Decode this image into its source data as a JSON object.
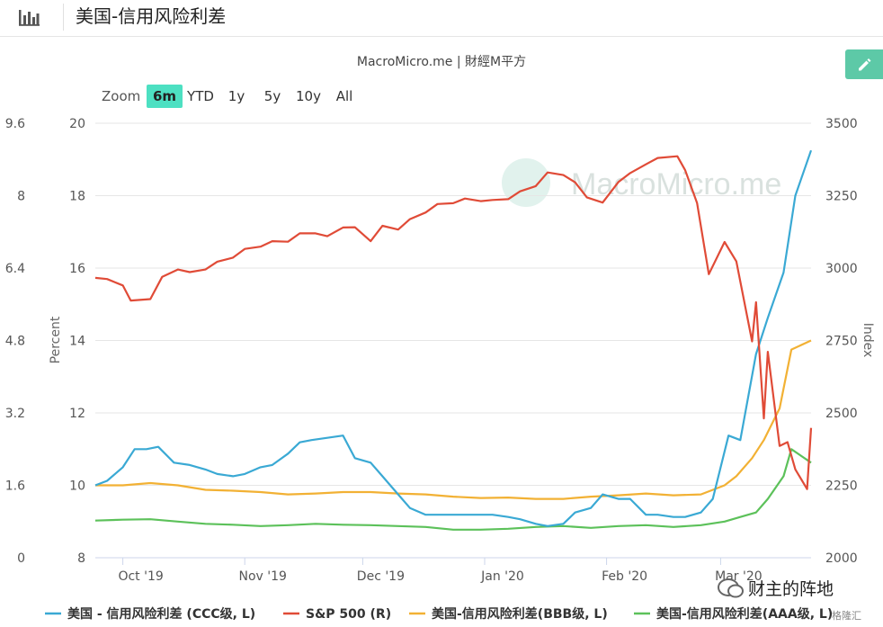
{
  "header": {
    "title": "美国-信用风险利差",
    "icon": "bar-chart-icon"
  },
  "source": "MacroMicro.me | 財經M平方",
  "watermark": "MacroMicro.me",
  "range_selector": {
    "zoom_label": "Zoom",
    "buttons": [
      "6m",
      "YTD",
      "1y",
      "5y",
      "10y",
      "All"
    ],
    "selected": "6m"
  },
  "edit_button": {
    "icon": "pencil-icon"
  },
  "footer_text": {
    "wechat": "财主的阵地",
    "small": "格隆汇"
  },
  "colors": {
    "ccc": "#3aa9d4",
    "sp500": "#e04b37",
    "bbb": "#f2b134",
    "aaa": "#5cc15a",
    "accent": "#4de0c2"
  },
  "chart_data": {
    "type": "line",
    "x_ticks": [
      "Oct '19",
      "Nov '19",
      "Dec '19",
      "Jan '20",
      "Feb '20",
      "Mar '20"
    ],
    "x_range": [
      "2019-09-24",
      "2020-03-24"
    ],
    "left_axis_1": {
      "ticks": [
        "9.6",
        "8",
        "6.4",
        "4.8",
        "3.2",
        "1.6",
        "0"
      ],
      "range": [
        0,
        9.6
      ]
    },
    "left_axis_2": {
      "label": "Percent",
      "ticks": [
        "20",
        "18",
        "16",
        "14",
        "12",
        "10",
        "8"
      ],
      "range": [
        8,
        20
      ]
    },
    "right_axis": {
      "label": "Index",
      "ticks": [
        "3500",
        "3250",
        "3000",
        "2750",
        "2500",
        "2250",
        "2000"
      ],
      "range": [
        2000,
        3500
      ]
    },
    "series": [
      {
        "name": "美国 - 信用风险利差 (CCC级, L)",
        "axis": "left_axis_1",
        "x": [
          "2019-09-24",
          "2019-09-27",
          "2019-10-01",
          "2019-10-04",
          "2019-10-07",
          "2019-10-10",
          "2019-10-14",
          "2019-10-18",
          "2019-10-22",
          "2019-10-25",
          "2019-10-29",
          "2019-11-01",
          "2019-11-05",
          "2019-11-08",
          "2019-11-12",
          "2019-11-15",
          "2019-11-18",
          "2019-11-22",
          "2019-11-26",
          "2019-11-29",
          "2019-12-03",
          "2019-12-06",
          "2019-12-10",
          "2019-12-13",
          "2019-12-17",
          "2019-12-20",
          "2019-12-24",
          "2019-12-27",
          "2019-12-31",
          "2020-01-03",
          "2020-01-07",
          "2020-01-10",
          "2020-01-14",
          "2020-01-17",
          "2020-01-21",
          "2020-01-24",
          "2020-01-28",
          "2020-01-31",
          "2020-02-04",
          "2020-02-07",
          "2020-02-11",
          "2020-02-14",
          "2020-02-18",
          "2020-02-21",
          "2020-02-25",
          "2020-02-28",
          "2020-03-03",
          "2020-03-06",
          "2020-03-10",
          "2020-03-13",
          "2020-03-17",
          "2020-03-20",
          "2020-03-24"
        ],
        "values": [
          1.6,
          1.7,
          2.0,
          2.4,
          2.4,
          2.45,
          2.1,
          2.05,
          1.95,
          1.85,
          1.8,
          1.85,
          2.0,
          2.05,
          2.3,
          2.55,
          2.6,
          2.65,
          2.7,
          2.2,
          2.1,
          1.8,
          1.4,
          1.1,
          0.95,
          0.95,
          0.95,
          0.95,
          0.95,
          0.95,
          0.9,
          0.85,
          0.75,
          0.7,
          0.75,
          1.0,
          1.1,
          1.4,
          1.3,
          1.3,
          0.95,
          0.95,
          0.9,
          0.9,
          1.0,
          1.3,
          2.7,
          2.6,
          4.5,
          5.3,
          6.3,
          8.0,
          9.0
        ]
      },
      {
        "name": "S&P 500 (R)",
        "axis": "right_axis",
        "x": [
          "2019-09-24",
          "2019-09-27",
          "2019-10-01",
          "2019-10-03",
          "2019-10-08",
          "2019-10-11",
          "2019-10-15",
          "2019-10-18",
          "2019-10-22",
          "2019-10-25",
          "2019-10-29",
          "2019-11-01",
          "2019-11-05",
          "2019-11-08",
          "2019-11-12",
          "2019-11-15",
          "2019-11-19",
          "2019-11-22",
          "2019-11-26",
          "2019-11-29",
          "2019-12-03",
          "2019-12-06",
          "2019-12-10",
          "2019-12-13",
          "2019-12-17",
          "2019-12-20",
          "2019-12-24",
          "2019-12-27",
          "2019-12-31",
          "2020-01-03",
          "2020-01-07",
          "2020-01-10",
          "2020-01-14",
          "2020-01-17",
          "2020-01-21",
          "2020-01-24",
          "2020-01-27",
          "2020-01-31",
          "2020-02-04",
          "2020-02-07",
          "2020-02-11",
          "2020-02-14",
          "2020-02-19",
          "2020-02-21",
          "2020-02-24",
          "2020-02-27",
          "2020-03-02",
          "2020-03-05",
          "2020-03-09",
          "2020-03-10",
          "2020-03-12",
          "2020-03-13",
          "2020-03-16",
          "2020-03-18",
          "2020-03-20",
          "2020-03-23",
          "2020-03-24"
        ],
        "values": [
          2966,
          2962,
          2940,
          2888,
          2893,
          2970,
          2995,
          2986,
          2995,
          3022,
          3036,
          3066,
          3074,
          3093,
          3091,
          3120,
          3120,
          3110,
          3140,
          3141,
          3093,
          3146,
          3133,
          3169,
          3192,
          3221,
          3224,
          3240,
          3231,
          3235,
          3238,
          3265,
          3283,
          3330,
          3321,
          3296,
          3244,
          3226,
          3297,
          3328,
          3358,
          3380,
          3386,
          3338,
          3225,
          2979,
          3090,
          3023,
          2747,
          2882,
          2481,
          2711,
          2386,
          2399,
          2305,
          2237,
          2448
        ]
      },
      {
        "name": "美国-信用风险利差(BBB级, L)",
        "axis": "left_axis_1",
        "x": [
          "2019-09-24",
          "2019-10-01",
          "2019-10-08",
          "2019-10-15",
          "2019-10-22",
          "2019-10-29",
          "2019-11-05",
          "2019-11-12",
          "2019-11-19",
          "2019-11-26",
          "2019-12-03",
          "2019-12-10",
          "2019-12-17",
          "2019-12-24",
          "2019-12-31",
          "2020-01-07",
          "2020-01-14",
          "2020-01-21",
          "2020-01-28",
          "2020-02-04",
          "2020-02-11",
          "2020-02-18",
          "2020-02-25",
          "2020-03-02",
          "2020-03-05",
          "2020-03-09",
          "2020-03-12",
          "2020-03-16",
          "2020-03-19",
          "2020-03-24"
        ],
        "values": [
          1.6,
          1.6,
          1.65,
          1.6,
          1.5,
          1.48,
          1.45,
          1.4,
          1.42,
          1.45,
          1.45,
          1.42,
          1.4,
          1.35,
          1.32,
          1.33,
          1.3,
          1.3,
          1.35,
          1.38,
          1.42,
          1.38,
          1.4,
          1.6,
          1.8,
          2.2,
          2.6,
          3.3,
          4.6,
          4.8
        ]
      },
      {
        "name": "美国-信用风险利差(AAA级, L)",
        "axis": "left_axis_1",
        "x": [
          "2019-09-24",
          "2019-10-01",
          "2019-10-08",
          "2019-10-15",
          "2019-10-22",
          "2019-10-29",
          "2019-11-05",
          "2019-11-12",
          "2019-11-19",
          "2019-11-26",
          "2019-12-03",
          "2019-12-10",
          "2019-12-17",
          "2019-12-24",
          "2019-12-31",
          "2020-01-07",
          "2020-01-14",
          "2020-01-21",
          "2020-01-28",
          "2020-02-04",
          "2020-02-11",
          "2020-02-18",
          "2020-02-25",
          "2020-03-02",
          "2020-03-06",
          "2020-03-10",
          "2020-03-13",
          "2020-03-17",
          "2020-03-19",
          "2020-03-24"
        ],
        "values": [
          0.82,
          0.84,
          0.85,
          0.8,
          0.75,
          0.73,
          0.7,
          0.72,
          0.75,
          0.73,
          0.72,
          0.7,
          0.68,
          0.62,
          0.62,
          0.64,
          0.68,
          0.7,
          0.66,
          0.7,
          0.72,
          0.68,
          0.72,
          0.8,
          0.9,
          1.0,
          1.3,
          1.8,
          2.4,
          2.1
        ]
      }
    ],
    "legend_position": "bottom",
    "grid": "horizontal"
  }
}
